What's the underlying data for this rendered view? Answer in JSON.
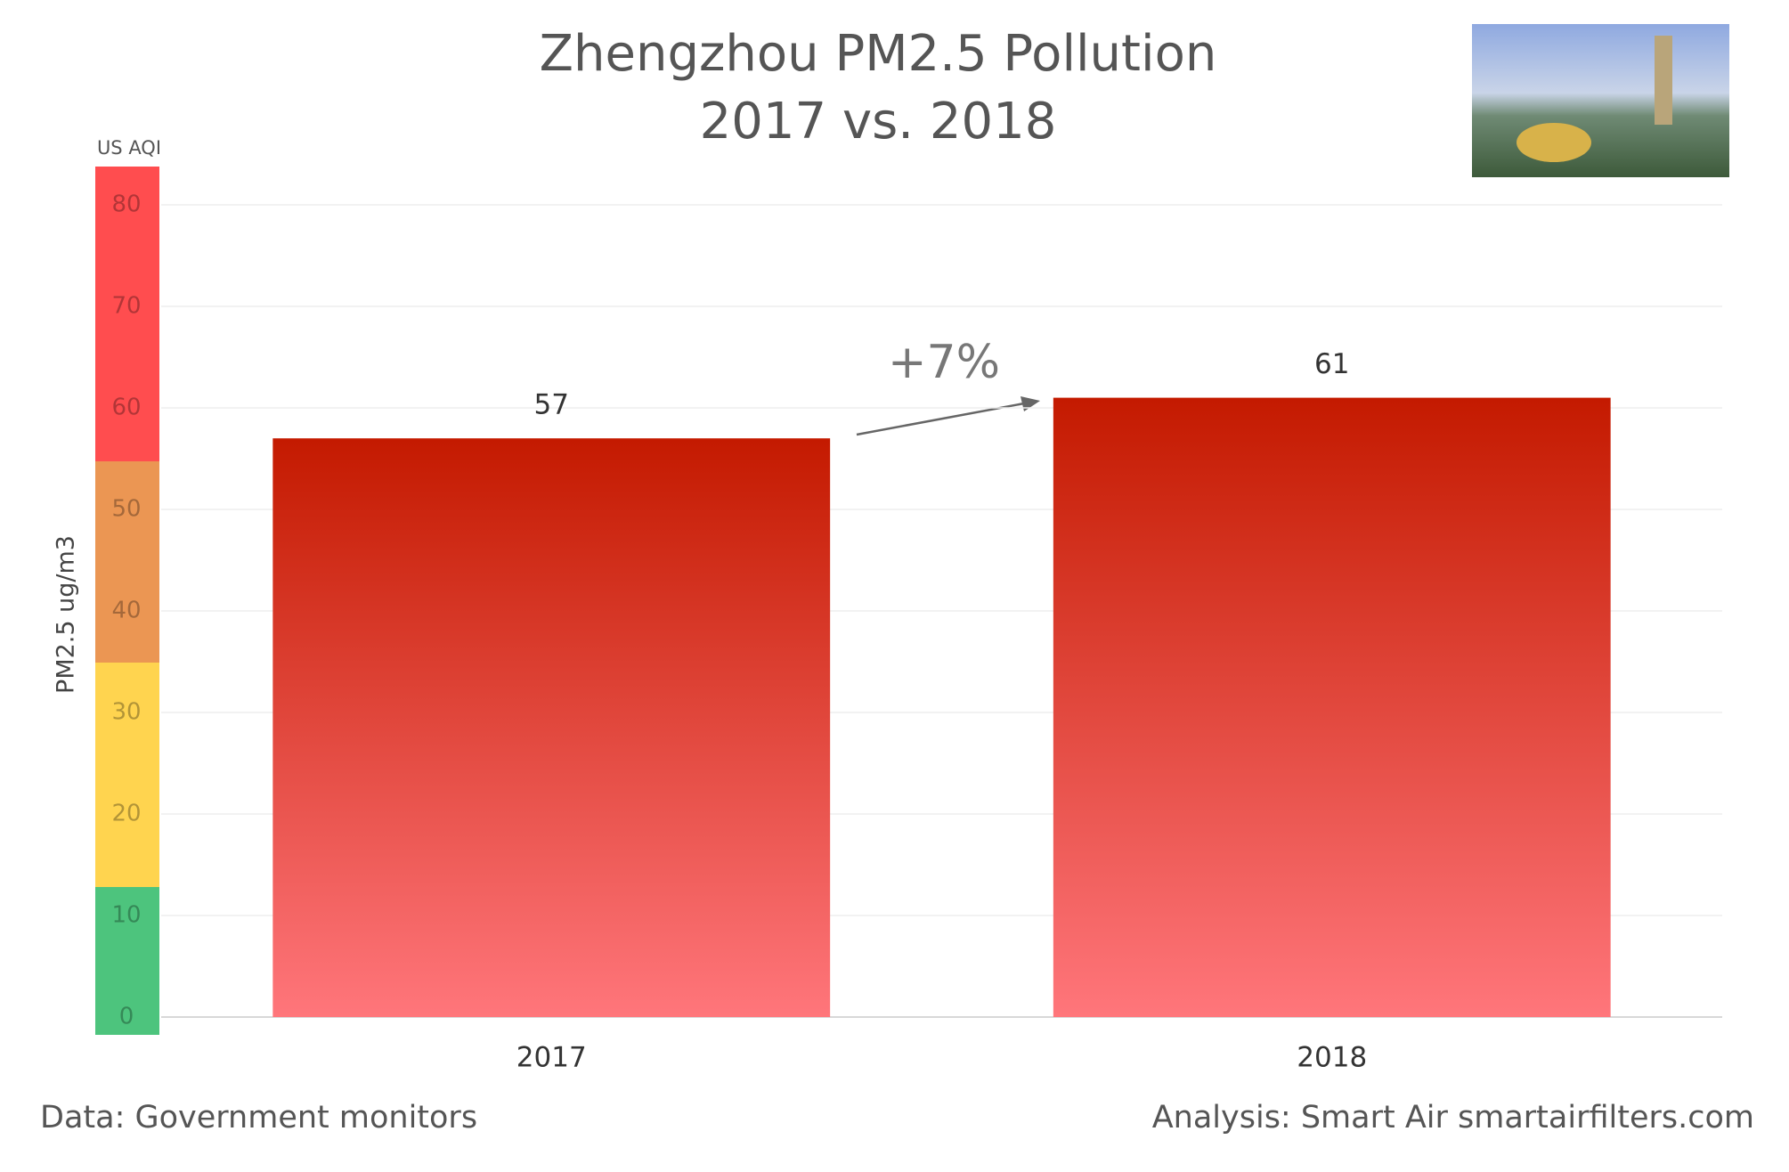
{
  "chart_data": {
    "type": "bar",
    "title": "Zhengzhou PM2.5 Pollution",
    "subtitle": "2017 vs. 2018",
    "y_label": "PM2.5 ug/m3",
    "scale_label": "US AQI",
    "annotation": "+7%",
    "source": "Data: Government monitors",
    "credit": "Analysis: Smart Air smartairfilters.com",
    "categories": [
      "2017",
      "2018"
    ],
    "values": [
      57,
      61
    ],
    "color_top": "#c41a00",
    "color_bottom": "#ff767b",
    "ylim": [
      0,
      80
    ],
    "yticks": [
      0,
      10,
      20,
      30,
      40,
      50,
      60,
      70,
      80
    ],
    "grid": true
  }
}
